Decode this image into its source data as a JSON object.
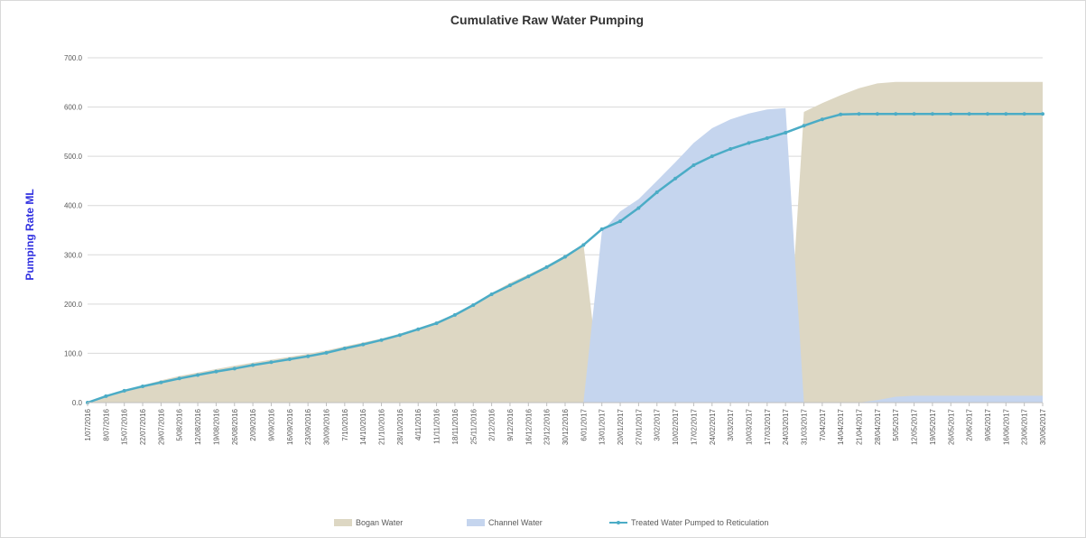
{
  "chart_data": {
    "type": "area",
    "title": "Cumulative Raw Water Pumping",
    "xlabel": "",
    "ylabel": "Pumping Rate ML",
    "ylim": [
      0,
      700
    ],
    "yticks": [
      "0.0",
      "100.0",
      "200.0",
      "300.0",
      "400.0",
      "500.0",
      "600.0",
      "700.0"
    ],
    "x": [
      "1/07/2016",
      "8/07/2016",
      "15/07/2016",
      "22/07/2016",
      "29/07/2016",
      "5/08/2016",
      "12/08/2016",
      "19/08/2016",
      "26/08/2016",
      "2/09/2016",
      "9/09/2016",
      "16/09/2016",
      "23/09/2016",
      "30/09/2016",
      "7/10/2016",
      "14/10/2016",
      "21/10/2016",
      "28/10/2016",
      "4/11/2016",
      "11/11/2016",
      "18/11/2016",
      "25/11/2016",
      "2/12/2016",
      "9/12/2016",
      "16/12/2016",
      "23/12/2016",
      "30/12/2016",
      "6/01/2017",
      "13/01/2017",
      "20/01/2017",
      "27/01/2017",
      "3/02/2017",
      "10/02/2017",
      "17/02/2017",
      "24/02/2017",
      "3/03/2017",
      "10/03/2017",
      "17/03/2017",
      "24/03/2017",
      "31/03/2017",
      "7/04/2017",
      "14/04/2017",
      "21/04/2017",
      "28/04/2017",
      "5/05/2017",
      "12/05/2017",
      "19/05/2017",
      "26/05/2017",
      "2/06/2017",
      "9/06/2017",
      "16/06/2017",
      "23/06/2017",
      "30/06/2017"
    ],
    "series": [
      {
        "name": "Bogan Water",
        "kind": "area",
        "color": "#ddd7c3",
        "values": [
          0,
          14,
          25,
          35,
          45,
          54,
          61,
          68,
          75,
          81,
          87,
          93,
          99,
          106,
          114,
          122,
          130,
          140,
          151,
          164,
          180,
          200,
          222,
          243,
          260,
          278,
          299,
          322,
          0,
          0,
          0,
          0,
          0,
          0,
          0,
          0,
          0,
          0,
          0,
          590,
          608,
          624,
          638,
          648,
          651,
          651,
          651,
          651,
          651,
          651,
          651,
          651,
          651
        ]
      },
      {
        "name": "Channel Water",
        "kind": "area",
        "color": "#c5d5ee",
        "values": [
          0,
          0,
          0,
          0,
          0,
          0,
          0,
          0,
          0,
          0,
          0,
          0,
          0,
          0,
          0,
          0,
          0,
          0,
          0,
          0,
          0,
          0,
          0,
          0,
          0,
          0,
          0,
          0,
          347,
          388,
          413,
          450,
          488,
          527,
          557,
          575,
          587,
          595,
          598,
          0,
          0,
          0,
          0,
          5,
          12,
          14,
          14,
          14,
          14,
          14,
          14,
          14,
          14
        ]
      },
      {
        "name": "Treated Water Pumped to Reticulation",
        "kind": "line",
        "color": "#4bacc6",
        "values": [
          0,
          13,
          24,
          33,
          41,
          49,
          56,
          63,
          69,
          76,
          82,
          88,
          94,
          101,
          110,
          118,
          127,
          137,
          149,
          161,
          178,
          198,
          220,
          238,
          256,
          275,
          296,
          320,
          352,
          368,
          395,
          427,
          455,
          482,
          500,
          515,
          527,
          537,
          548,
          562,
          575,
          585,
          586,
          586,
          586,
          586,
          586,
          586,
          586,
          586,
          586,
          586,
          586
        ]
      }
    ],
    "legend_position": "bottom",
    "grid": true
  }
}
